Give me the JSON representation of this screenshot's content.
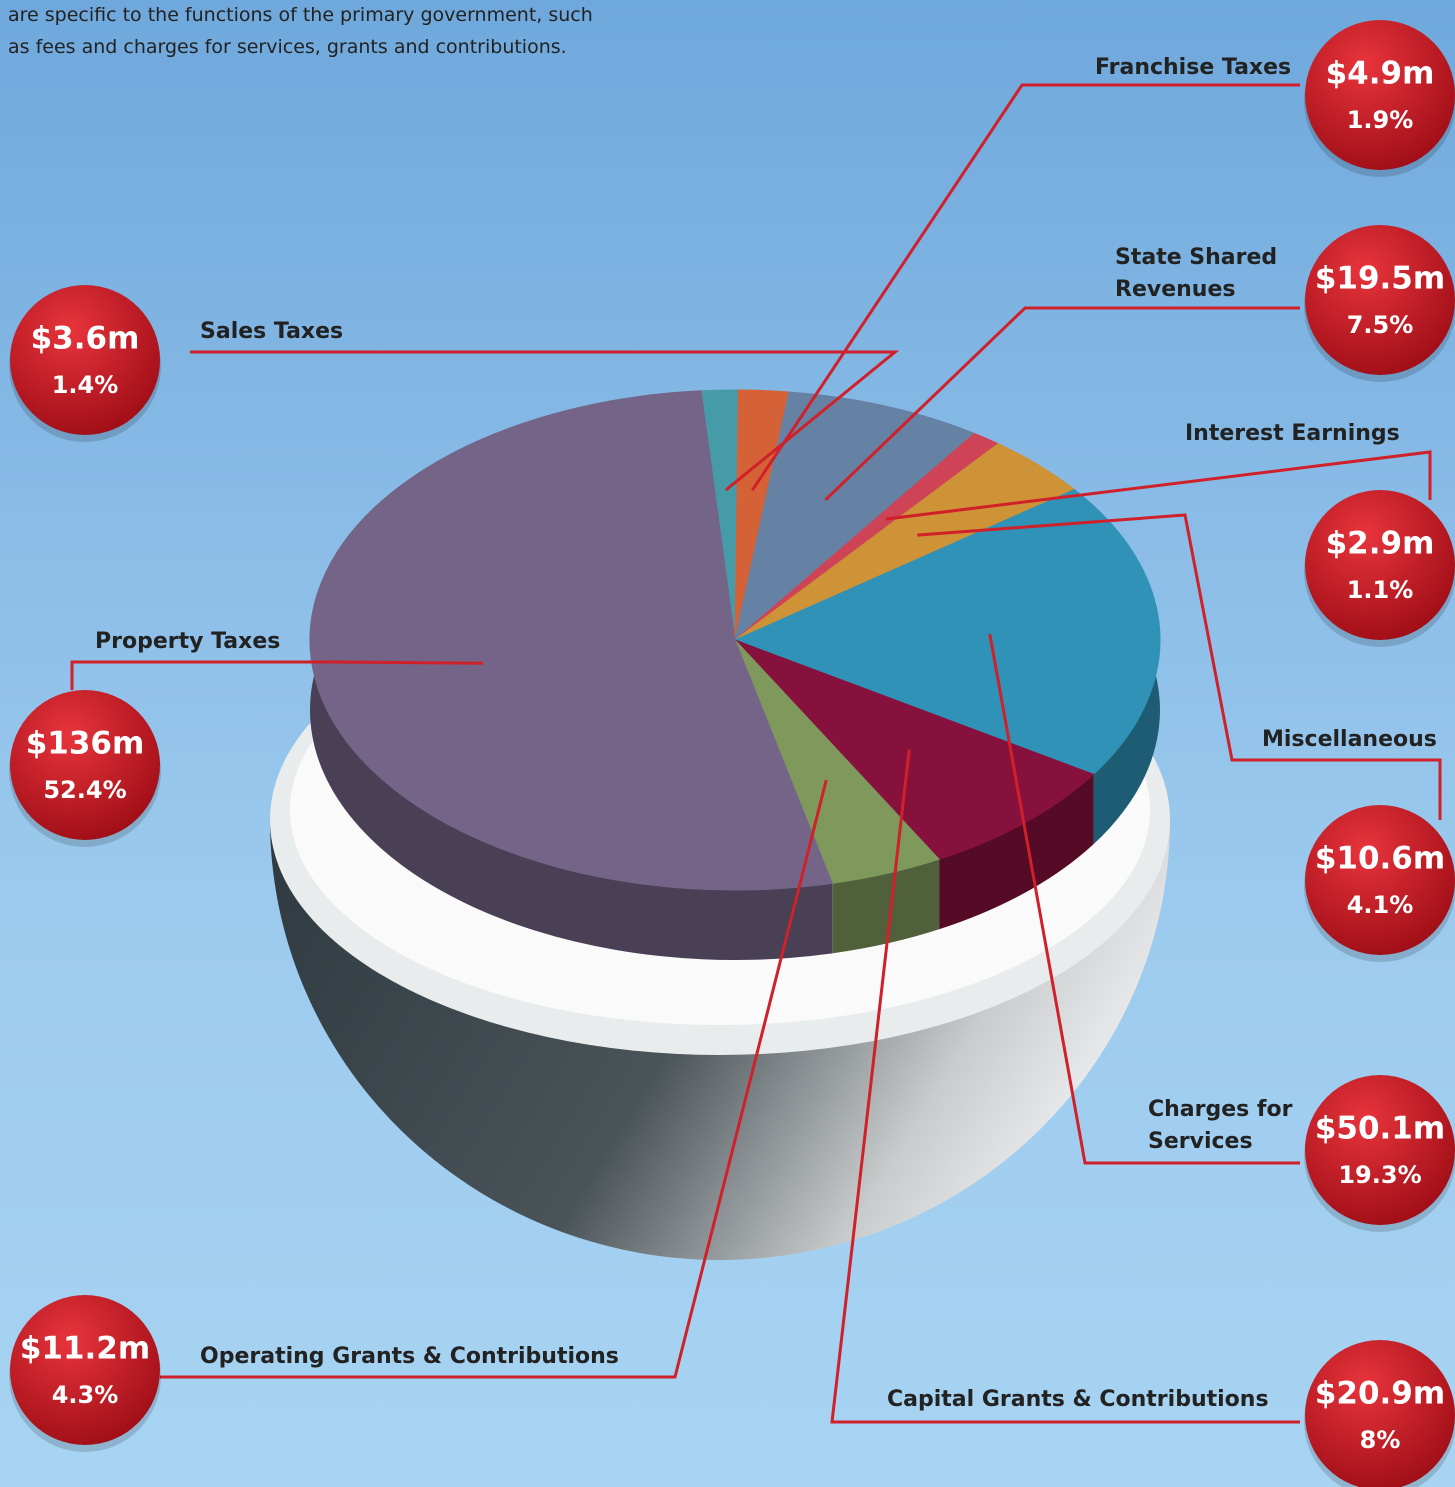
{
  "intro": [
    "are specific to the functions of the primary government, such",
    "as fees and charges for services, grants and contributions."
  ],
  "chart_data": {
    "type": "pie",
    "categories": [
      "Sales Taxes",
      "Franchise Taxes",
      "State Shared Revenues",
      "Interest Earnings",
      "Miscellaneous",
      "Charges for Services",
      "Capital Grants & Contributions",
      "Operating Grants & Contributions",
      "Property Taxes"
    ],
    "values": [
      1.4,
      1.9,
      7.5,
      1.1,
      4.1,
      19.3,
      8,
      4.3,
      52.4
    ],
    "value_labels": [
      "1.4%",
      "1.9%",
      "7.5%",
      "1.1%",
      "4.1%",
      "19.3%",
      "8%",
      "4.3%",
      "52.4%"
    ],
    "amount_labels": [
      "$3.6m",
      "$4.9m",
      "$19.5m",
      "$2.9m",
      "$10.6m",
      "$50.1m",
      "$20.9m",
      "$11.2m",
      "$136m"
    ],
    "colors": [
      "#4aa3b2",
      "#e0673a",
      "#6a88ad",
      "#d9485a",
      "#d99a3a",
      "#329ac0",
      "#8e1240",
      "#86a060",
      "#7a6a8f"
    ]
  }
}
